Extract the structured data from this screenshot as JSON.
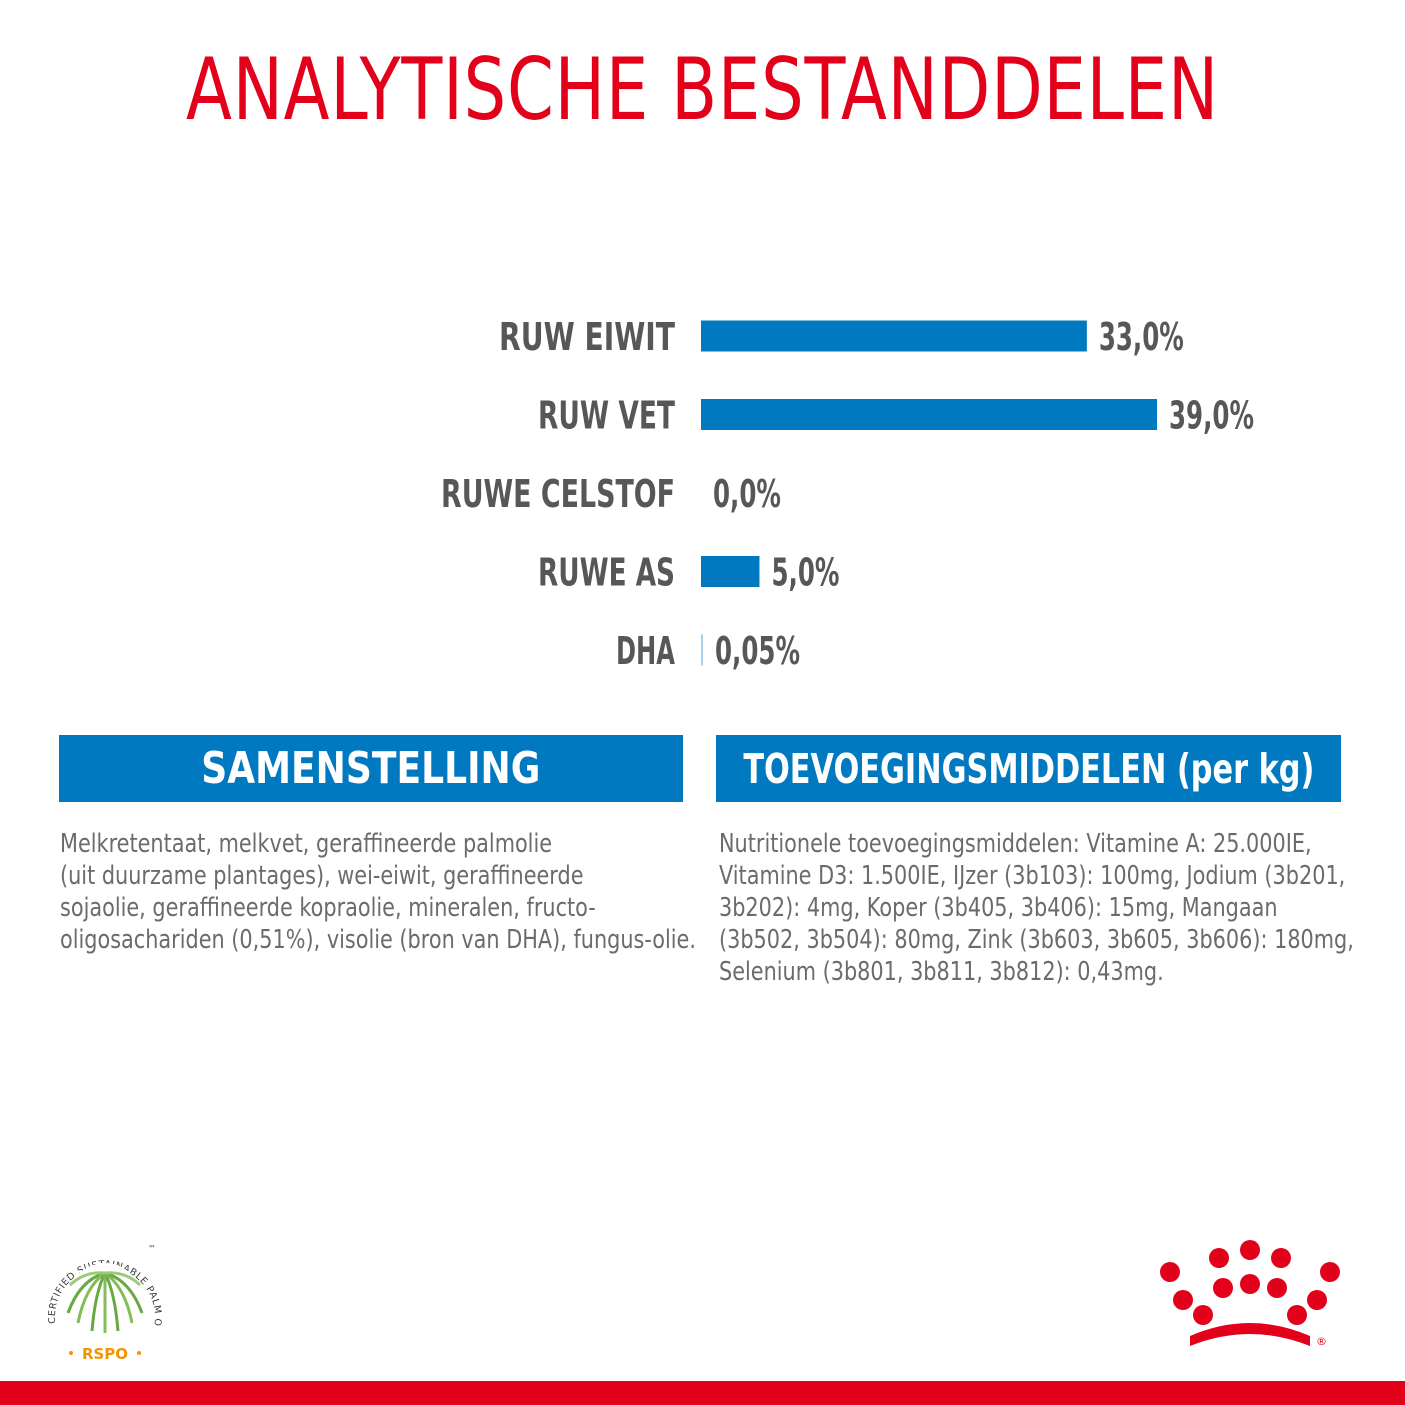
{
  "title": "ANALYTISCHE BESTANDDELEN",
  "chart_data": {
    "type": "bar",
    "orientation": "horizontal",
    "categories": [
      "RUW EIWIT",
      "RUW VET",
      "RUWE CELSTOF",
      "RUWE AS",
      "DHA"
    ],
    "values": [
      33.0,
      39.0,
      0.0,
      5.0,
      0.05
    ],
    "value_labels": [
      "33,0%",
      "39,0%",
      "0,0%",
      "5,0%",
      "0,05%"
    ],
    "xlim": [
      0,
      39
    ],
    "bar_color": "#0079c1",
    "grid": false
  },
  "sections": {
    "composition": {
      "heading": "SAMENSTELLING",
      "lines": [
        "Melkretentaat, melkvet, geraffineerde palmolie",
        "(uit duurzame plantages), wei-eiwit, geraffineerde",
        "sojaolie, geraffineerde kopraolie, mineralen, fructo-",
        "oligosachariden (0,51%), visolie (bron van DHA), fungus-olie."
      ]
    },
    "additives": {
      "heading": "TOEVOEGINGSMIDDELEN (per kg)",
      "lines": [
        "Nutritionele toevoegingsmiddelen: Vitamine A: 25.000IE,",
        "Vitamine D3: 1.500IE, IJzer (3b103): 100mg, Jodium (3b201,",
        "3b202): 4mg, Koper (3b405, 3b406): 15mg, Mangaan",
        "(3b502, 3b504): 80mg, Zink (3b603, 3b605, 3b606): 180mg,",
        "Selenium (3b801, 3b811, 3b812): 0,43mg."
      ]
    }
  },
  "rspo_logo": {
    "arc_text": "CERTIFIED SUSTAINABLE PALM OIL",
    "name": "RSPO",
    "trademark": "™"
  },
  "brand_logo": {
    "icon": "royal-canin-crown-icon",
    "registered": "®"
  },
  "colors": {
    "title": "#e2001a",
    "accent_blue": "#0079c1",
    "label_gray": "#575757",
    "body_gray": "#6b6b6b",
    "bottom_bar": "#e2001a"
  }
}
